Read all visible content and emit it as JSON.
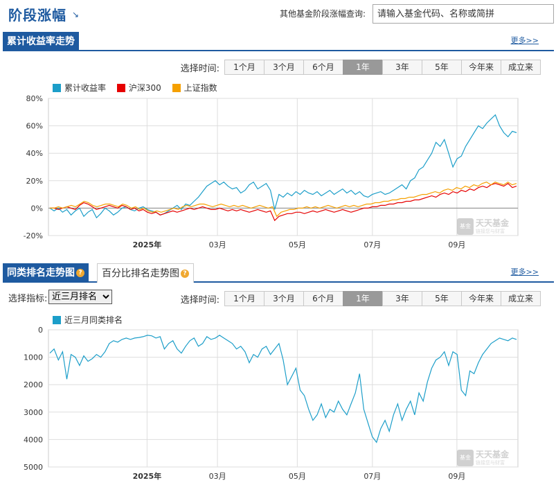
{
  "header": {
    "title": "阶段涨幅",
    "title_arrow": "↘",
    "query_label": "其他基金阶段涨幅查询:",
    "query_placeholder": "请输入基金代码、名称或简拼"
  },
  "section1": {
    "tab": "累计收益率走势",
    "more": "更多>>",
    "time_label": "选择时间:",
    "time_options": [
      "1个月",
      "3个月",
      "6个月",
      "1年",
      "3年",
      "5年",
      "今年来",
      "成立来"
    ],
    "active_option": "1年",
    "legend": [
      {
        "name": "累计收益率",
        "color": "#1c9ec9"
      },
      {
        "name": "沪深300",
        "color": "#e60000"
      },
      {
        "name": "上证指数",
        "color": "#f5a000"
      }
    ]
  },
  "section2": {
    "tab": "同类排名走势图",
    "tab2": "百分比排名走势图",
    "more": "更多>>",
    "indicator_label": "选择指标:",
    "indicator_value": "近三月排名",
    "time_label": "选择时间:",
    "time_options": [
      "1个月",
      "3个月",
      "6个月",
      "1年",
      "3年",
      "5年",
      "今年来",
      "成立来"
    ],
    "active_option": "1年",
    "legend": [
      {
        "name": "近三月同类排名",
        "color": "#1c9ec9"
      }
    ]
  },
  "watermark": {
    "logo": "基金",
    "name": "天天基金",
    "slogan": "链接您与财富"
  },
  "chart_data": [
    {
      "type": "line",
      "ylim": [
        -20,
        80
      ],
      "yticks": [
        "80%",
        "60%",
        "40%",
        "20%",
        "0%",
        "-20%"
      ],
      "ytick_values": [
        80,
        60,
        40,
        20,
        0,
        -20
      ],
      "xticks": [
        "2025年",
        "03月",
        "05月",
        "07月",
        "09月"
      ],
      "xtick_pos": [
        0.21,
        0.36,
        0.53,
        0.69,
        0.87
      ],
      "series": [
        {
          "name": "累计收益率",
          "color": "#1c9ec9",
          "values": [
            0,
            -2,
            0,
            -3,
            -1,
            -5,
            -2,
            0,
            -6,
            -3,
            -1,
            -7,
            -4,
            0,
            -2,
            -5,
            -3,
            0,
            1,
            -1,
            -2,
            0,
            1,
            -1,
            -2,
            -3,
            -5,
            -4,
            -2,
            0,
            2,
            -1,
            3,
            2,
            5,
            8,
            12,
            16,
            18,
            20,
            17,
            19,
            16,
            14,
            15,
            11,
            13,
            17,
            19,
            14,
            16,
            18,
            13,
            -1,
            10,
            8,
            11,
            9,
            12,
            10,
            13,
            11,
            10,
            12,
            9,
            11,
            13,
            10,
            12,
            14,
            11,
            13,
            10,
            12,
            9,
            8,
            10,
            11,
            12,
            10,
            11,
            13,
            15,
            17,
            14,
            20,
            22,
            28,
            30,
            35,
            40,
            48,
            45,
            50,
            40,
            30,
            36,
            38,
            45,
            50,
            55,
            60,
            58,
            62,
            65,
            68,
            60,
            55,
            52,
            56,
            55
          ]
        },
        {
          "name": "沪深300",
          "color": "#e60000",
          "values": [
            0,
            0,
            -1,
            0,
            1,
            0,
            -1,
            2,
            4,
            3,
            1,
            -1,
            0,
            1,
            2,
            1,
            0,
            2,
            1,
            -1,
            0,
            -2,
            -1,
            -3,
            -4,
            -3,
            -5,
            -4,
            -3,
            -2,
            -3,
            -2,
            -1,
            0,
            -1,
            0,
            1,
            0,
            -1,
            -1,
            0,
            -1,
            -2,
            -1,
            -2,
            -1,
            -2,
            -3,
            -2,
            -1,
            -2,
            -3,
            -2,
            -9,
            -6,
            -5,
            -4,
            -4,
            -3,
            -3,
            -4,
            -3,
            -2,
            -3,
            -2,
            -1,
            -2,
            -3,
            -2,
            -1,
            -2,
            -3,
            -2,
            -1,
            0,
            0,
            1,
            1,
            2,
            2,
            3,
            3,
            4,
            4,
            5,
            5,
            6,
            6,
            7,
            8,
            9,
            8,
            10,
            11,
            10,
            12,
            11,
            13,
            12,
            14,
            13,
            15,
            16,
            15,
            17,
            18,
            17,
            16,
            18,
            15,
            16
          ]
        },
        {
          "name": "上证指数",
          "color": "#f5a000",
          "values": [
            0,
            0,
            1,
            0,
            1,
            2,
            1,
            3,
            5,
            4,
            2,
            1,
            2,
            3,
            3,
            2,
            1,
            3,
            2,
            0,
            1,
            -1,
            0,
            -2,
            -3,
            -2,
            -3,
            -2,
            -1,
            0,
            -1,
            1,
            2,
            1,
            2,
            3,
            3,
            2,
            1,
            2,
            3,
            2,
            1,
            2,
            1,
            2,
            1,
            0,
            1,
            2,
            1,
            0,
            1,
            -6,
            -3,
            -2,
            -1,
            -1,
            0,
            0,
            1,
            0,
            1,
            0,
            1,
            2,
            1,
            0,
            1,
            2,
            1,
            2,
            1,
            2,
            3,
            3,
            4,
            4,
            5,
            5,
            6,
            6,
            7,
            7,
            8,
            8,
            9,
            10,
            10,
            11,
            12,
            11,
            13,
            14,
            13,
            15,
            14,
            16,
            15,
            17,
            16,
            18,
            19,
            17,
            19,
            18,
            17,
            19,
            17,
            18
          ]
        }
      ]
    },
    {
      "type": "line",
      "ylim": [
        0,
        5000
      ],
      "yreverse": true,
      "yticks": [
        "0",
        "1000",
        "2000",
        "3000",
        "4000",
        "5000"
      ],
      "ytick_values": [
        0,
        1000,
        2000,
        3000,
        4000,
        5000
      ],
      "xticks": [
        "2025年",
        "03月",
        "05月",
        "07月",
        "09月"
      ],
      "xtick_pos": [
        0.21,
        0.36,
        0.53,
        0.69,
        0.87
      ],
      "series": [
        {
          "name": "近三月同类排名",
          "color": "#1c9ec9",
          "values": [
            850,
            700,
            1100,
            800,
            1800,
            900,
            1000,
            1300,
            950,
            1150,
            1050,
            900,
            1000,
            800,
            500,
            400,
            450,
            350,
            300,
            350,
            300,
            280,
            250,
            200,
            220,
            300,
            250,
            700,
            500,
            400,
            700,
            850,
            600,
            400,
            300,
            600,
            500,
            250,
            350,
            300,
            200,
            300,
            400,
            500,
            700,
            600,
            800,
            1200,
            900,
            1000,
            700,
            600,
            900,
            700,
            500,
            1100,
            2000,
            1700,
            1400,
            2200,
            2400,
            2900,
            3300,
            3100,
            2700,
            3200,
            2900,
            3000,
            2600,
            2900,
            3100,
            2700,
            2300,
            1600,
            2900,
            3400,
            3900,
            4100,
            3600,
            3300,
            3700,
            3100,
            2700,
            3300,
            2900,
            2600,
            3100,
            2300,
            2600,
            1900,
            1400,
            1100,
            1000,
            800,
            1300,
            800,
            900,
            2200,
            2400,
            1500,
            1600,
            1200,
            900,
            700,
            500,
            400,
            300,
            350,
            400,
            300,
            350
          ]
        }
      ]
    }
  ]
}
